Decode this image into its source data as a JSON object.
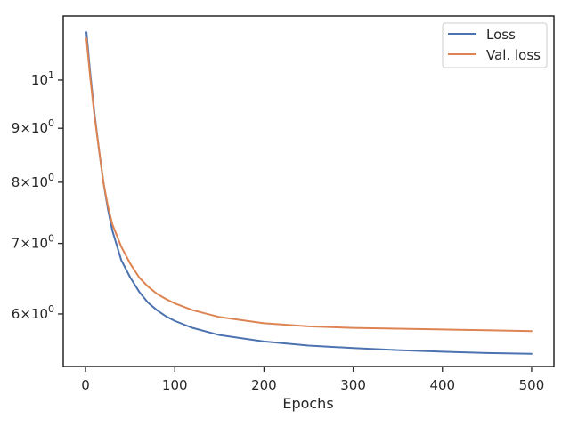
{
  "chart_data": {
    "type": "line",
    "title": "",
    "xlabel": "Epochs",
    "ylabel": "",
    "yscale": "log",
    "xlim": [
      -25,
      525
    ],
    "ylim": [
      5.35,
      11.5
    ],
    "grid": false,
    "legend_position": "top-right",
    "x_ticks": [
      {
        "value": 0,
        "label": "0"
      },
      {
        "value": 100,
        "label": "100"
      },
      {
        "value": 200,
        "label": "200"
      },
      {
        "value": 300,
        "label": "300"
      },
      {
        "value": 400,
        "label": "400"
      },
      {
        "value": 500,
        "label": "500"
      }
    ],
    "y_ticks": [
      {
        "value": 6,
        "base": "6",
        "exp": "0"
      },
      {
        "value": 7,
        "base": "7",
        "exp": "0"
      },
      {
        "value": 8,
        "base": "8",
        "exp": "0"
      },
      {
        "value": 9,
        "base": "9",
        "exp": "0"
      },
      {
        "value": 10,
        "base": "",
        "exp": "1"
      }
    ],
    "series": [
      {
        "name": "Loss",
        "color": "#4c72b0",
        "x": [
          1,
          5,
          10,
          15,
          20,
          25,
          30,
          40,
          50,
          60,
          70,
          80,
          90,
          100,
          120,
          150,
          200,
          250,
          300,
          350,
          400,
          450,
          500
        ],
        "y": [
          11.1,
          10.2,
          9.3,
          8.6,
          8.0,
          7.55,
          7.2,
          6.75,
          6.5,
          6.3,
          6.15,
          6.05,
          5.97,
          5.91,
          5.82,
          5.73,
          5.65,
          5.6,
          5.57,
          5.545,
          5.525,
          5.51,
          5.5
        ]
      },
      {
        "name": "Val. loss",
        "color": "#dd8452",
        "x": [
          1,
          5,
          10,
          15,
          20,
          25,
          30,
          40,
          50,
          60,
          70,
          80,
          90,
          100,
          120,
          150,
          200,
          250,
          300,
          350,
          400,
          450,
          500
        ],
        "y": [
          10.95,
          10.1,
          9.25,
          8.6,
          8.0,
          7.6,
          7.3,
          6.95,
          6.7,
          6.5,
          6.37,
          6.27,
          6.2,
          6.14,
          6.05,
          5.96,
          5.88,
          5.84,
          5.82,
          5.81,
          5.8,
          5.79,
          5.78
        ]
      }
    ]
  }
}
